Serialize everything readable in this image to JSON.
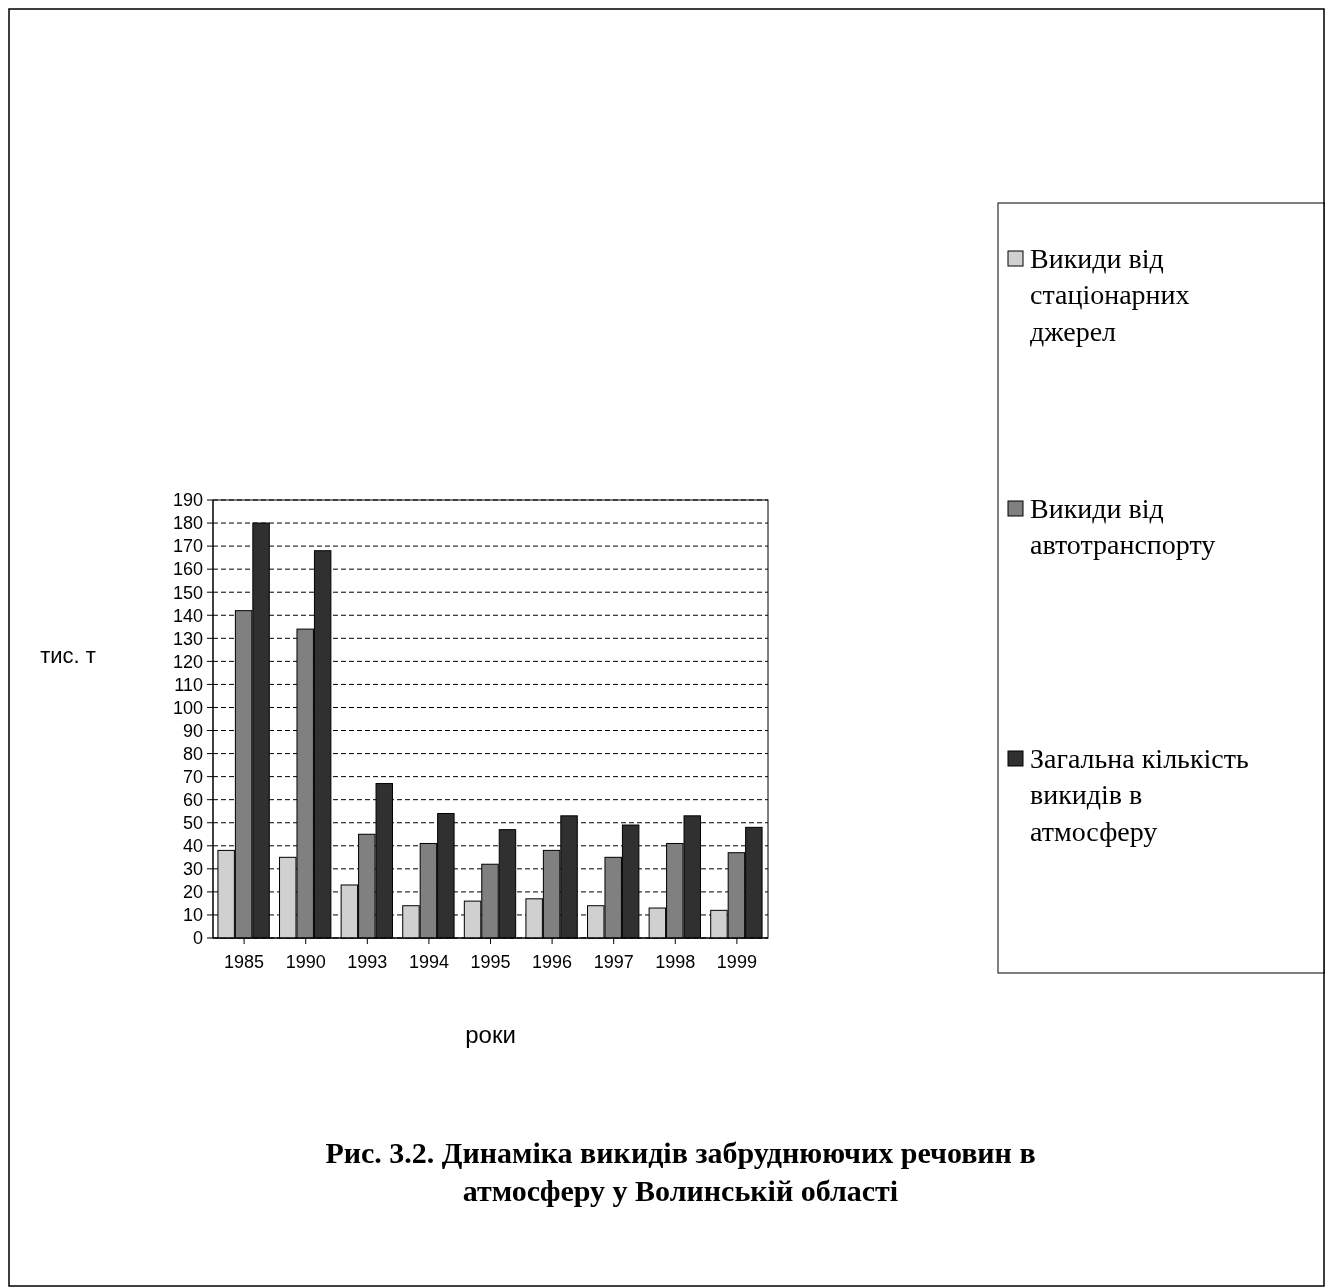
{
  "chart_data": {
    "type": "bar",
    "title": "Рис. 3.2. Динаміка викидів забруднюючих речовин в атмосферу у Волинській області",
    "xlabel": "роки",
    "ylabel": "тис. т",
    "categories": [
      "1985",
      "1990",
      "1993",
      "1994",
      "1995",
      "1996",
      "1997",
      "1998",
      "1999"
    ],
    "series": [
      {
        "name": "Викиди від стаціонарних джерел",
        "color": "#d0d0d0",
        "values": [
          38,
          35,
          23,
          14,
          16,
          17,
          14,
          13,
          12
        ]
      },
      {
        "name": "Викиди від автотранспорту",
        "color": "#808080",
        "values": [
          142,
          134,
          45,
          41,
          32,
          38,
          35,
          41,
          37
        ]
      },
      {
        "name": "Загальна кількість викидів в атмосферу",
        "color": "#303030",
        "values": [
          180,
          168,
          67,
          54,
          47,
          53,
          49,
          53,
          48
        ]
      }
    ],
    "ylim": [
      0,
      190
    ],
    "yticks": [
      0,
      10,
      20,
      30,
      40,
      50,
      60,
      70,
      80,
      90,
      100,
      110,
      120,
      130,
      140,
      150,
      160,
      170,
      180,
      190
    ],
    "grid": "y",
    "legend": "right"
  }
}
